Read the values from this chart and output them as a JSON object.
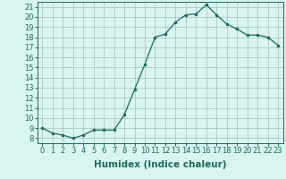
{
  "x": [
    0,
    1,
    2,
    3,
    4,
    5,
    6,
    7,
    8,
    9,
    10,
    11,
    12,
    13,
    14,
    15,
    16,
    17,
    18,
    19,
    20,
    21,
    22,
    23
  ],
  "y": [
    9.0,
    8.5,
    8.3,
    8.0,
    8.3,
    8.8,
    8.8,
    8.8,
    10.3,
    12.8,
    15.3,
    18.0,
    18.3,
    19.5,
    20.2,
    20.3,
    21.2,
    20.2,
    19.3,
    18.8,
    18.2,
    18.2,
    18.0,
    17.2
  ],
  "title": "",
  "xlabel": "Humidex (Indice chaleur)",
  "ylabel": "",
  "xlim": [
    -0.5,
    23.5
  ],
  "ylim": [
    7.5,
    21.5
  ],
  "yticks": [
    8,
    9,
    10,
    11,
    12,
    13,
    14,
    15,
    16,
    17,
    18,
    19,
    20,
    21
  ],
  "xtick_labels": [
    "0",
    "1",
    "2",
    "3",
    "4",
    "5",
    "6",
    "7",
    "8",
    "9",
    "10",
    "11",
    "12",
    "13",
    "14",
    "15",
    "16",
    "17",
    "18",
    "19",
    "20",
    "21",
    "22",
    "23"
  ],
  "line_color": "#1a6b5a",
  "bg_color": "#d8f5f0",
  "grid_color": "#adc8c4",
  "label_fontsize": 7.5,
  "tick_fontsize": 6
}
